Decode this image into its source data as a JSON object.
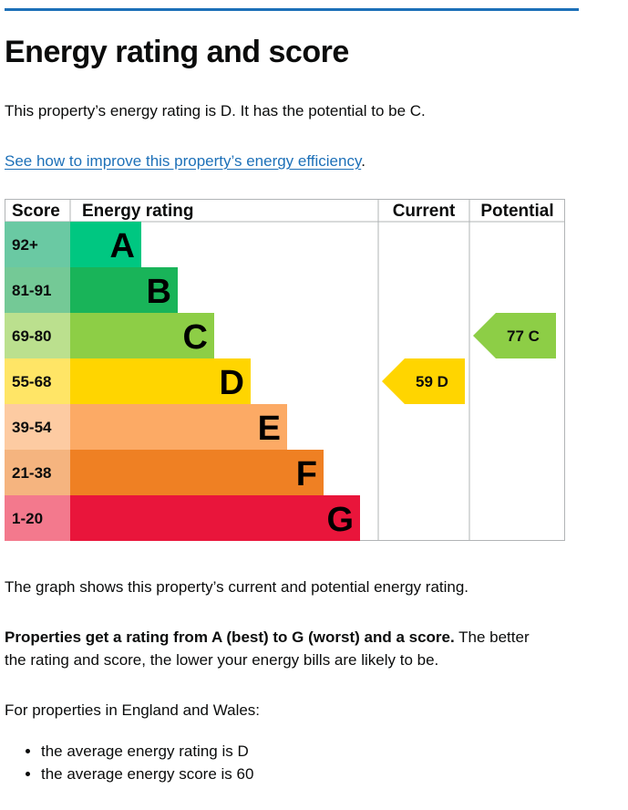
{
  "title": "Energy rating and score",
  "intro": "This property’s energy rating is D. It has the potential to be C.",
  "improve_link": "See how to improve this property’s energy efficiency",
  "improve_link_suffix": ".",
  "colors": {
    "accent": "#1d70b8",
    "text": "#0b0c0c"
  },
  "chart_data": {
    "type": "table",
    "headers": {
      "score": "Score",
      "rating": "Energy rating",
      "current": "Current",
      "potential": "Potential"
    },
    "bands": [
      {
        "letter": "A",
        "range": "92+",
        "color": "#00c781",
        "score_color": "#6ac9a3"
      },
      {
        "letter": "B",
        "range": "81-91",
        "color": "#19b459",
        "score_color": "#74c996"
      },
      {
        "letter": "C",
        "range": "69-80",
        "color": "#8dce46",
        "score_color": "#bbe08e"
      },
      {
        "letter": "D",
        "range": "55-68",
        "color": "#ffd500",
        "score_color": "#ffe566"
      },
      {
        "letter": "E",
        "range": "39-54",
        "color": "#fcaa65",
        "score_color": "#fdcba2"
      },
      {
        "letter": "F",
        "range": "21-38",
        "color": "#ef8023",
        "score_color": "#f5b47f"
      },
      {
        "letter": "G",
        "range": "1-20",
        "color": "#e9153b",
        "score_color": "#f3798d"
      }
    ],
    "current": {
      "score": 59,
      "rating": "D",
      "label": "59  D"
    },
    "potential": {
      "score": 77,
      "rating": "C",
      "label": "77  C"
    }
  },
  "graph_description": "The graph shows this property’s current and potential energy rating.",
  "rating_note_bold": "Properties get a rating from A (best) to G (worst) and a score.",
  "rating_note_rest_1": " The better",
  "rating_note_rest_2": "the rating and score, the lower your energy bills are likely to be.",
  "averages_intro": "For properties in England and Wales:",
  "averages": [
    "the average energy rating is D",
    "the average energy score is 60"
  ]
}
